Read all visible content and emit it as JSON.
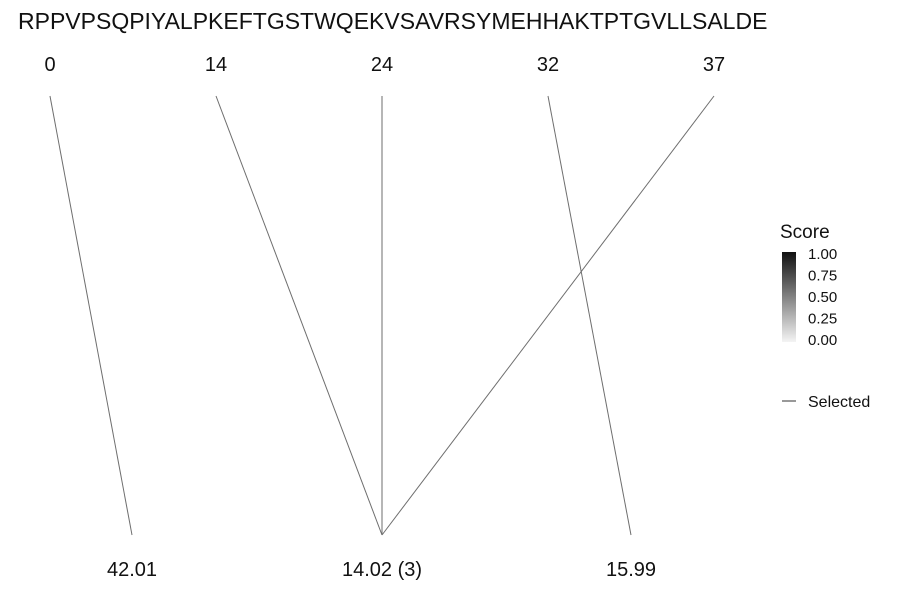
{
  "sequence": "RPPVPSQPIYALPKEFTGSTWQEKVSAVRSYMEHHAKTPTGVLLSALDE",
  "positions": [
    "0",
    "14",
    "24",
    "32",
    "37"
  ],
  "masses": [
    "42.01",
    "14.02 (3)",
    "15.99"
  ],
  "links": [
    {
      "from": 0,
      "to": 0
    },
    {
      "from": 1,
      "to": 1
    },
    {
      "from": 2,
      "to": 1
    },
    {
      "from": 4,
      "to": 1
    },
    {
      "from": 3,
      "to": 2
    }
  ],
  "legend": {
    "title": "Score",
    "ticks": [
      "1.00",
      "0.75",
      "0.50",
      "0.25",
      "0.00"
    ],
    "selected_label": "Selected",
    "gradient_top": "#111111",
    "gradient_bottom": "#f4f4f4"
  },
  "colors": {
    "line": "#6e6e6e",
    "text": "#111111"
  }
}
